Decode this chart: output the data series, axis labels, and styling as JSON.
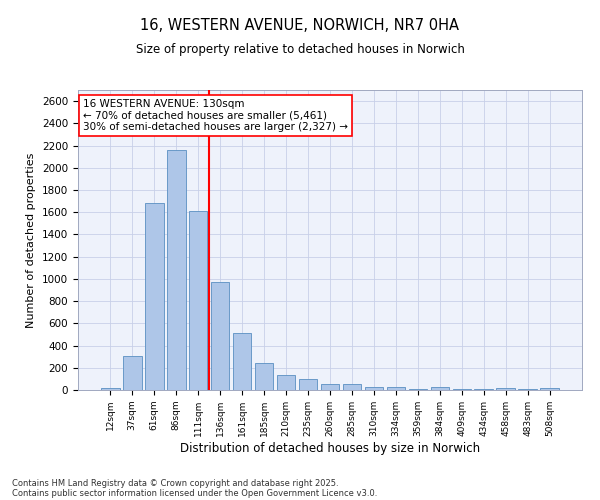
{
  "title1": "16, WESTERN AVENUE, NORWICH, NR7 0HA",
  "title2": "Size of property relative to detached houses in Norwich",
  "xlabel": "Distribution of detached houses by size in Norwich",
  "ylabel": "Number of detached properties",
  "categories": [
    "12sqm",
    "37sqm",
    "61sqm",
    "86sqm",
    "111sqm",
    "136sqm",
    "161sqm",
    "185sqm",
    "210sqm",
    "235sqm",
    "260sqm",
    "285sqm",
    "310sqm",
    "334sqm",
    "359sqm",
    "384sqm",
    "409sqm",
    "434sqm",
    "458sqm",
    "483sqm",
    "508sqm"
  ],
  "values": [
    20,
    305,
    1680,
    2160,
    1615,
    975,
    510,
    245,
    135,
    100,
    50,
    50,
    25,
    30,
    5,
    25,
    5,
    5,
    20,
    5,
    20
  ],
  "bar_color": "#aec6e8",
  "bar_edge_color": "#5a8fc2",
  "vline_index": 4.5,
  "vline_color": "red",
  "annotation_text": "16 WESTERN AVENUE: 130sqm\n← 70% of detached houses are smaller (5,461)\n30% of semi-detached houses are larger (2,327) →",
  "annotation_box_color": "white",
  "annotation_box_edge_color": "red",
  "ylim": [
    0,
    2700
  ],
  "yticks": [
    0,
    200,
    400,
    600,
    800,
    1000,
    1200,
    1400,
    1600,
    1800,
    2000,
    2200,
    2400,
    2600
  ],
  "footer1": "Contains HM Land Registry data © Crown copyright and database right 2025.",
  "footer2": "Contains public sector information licensed under the Open Government Licence v3.0.",
  "bg_color": "#eef2fb",
  "grid_color": "#c8d0e8"
}
